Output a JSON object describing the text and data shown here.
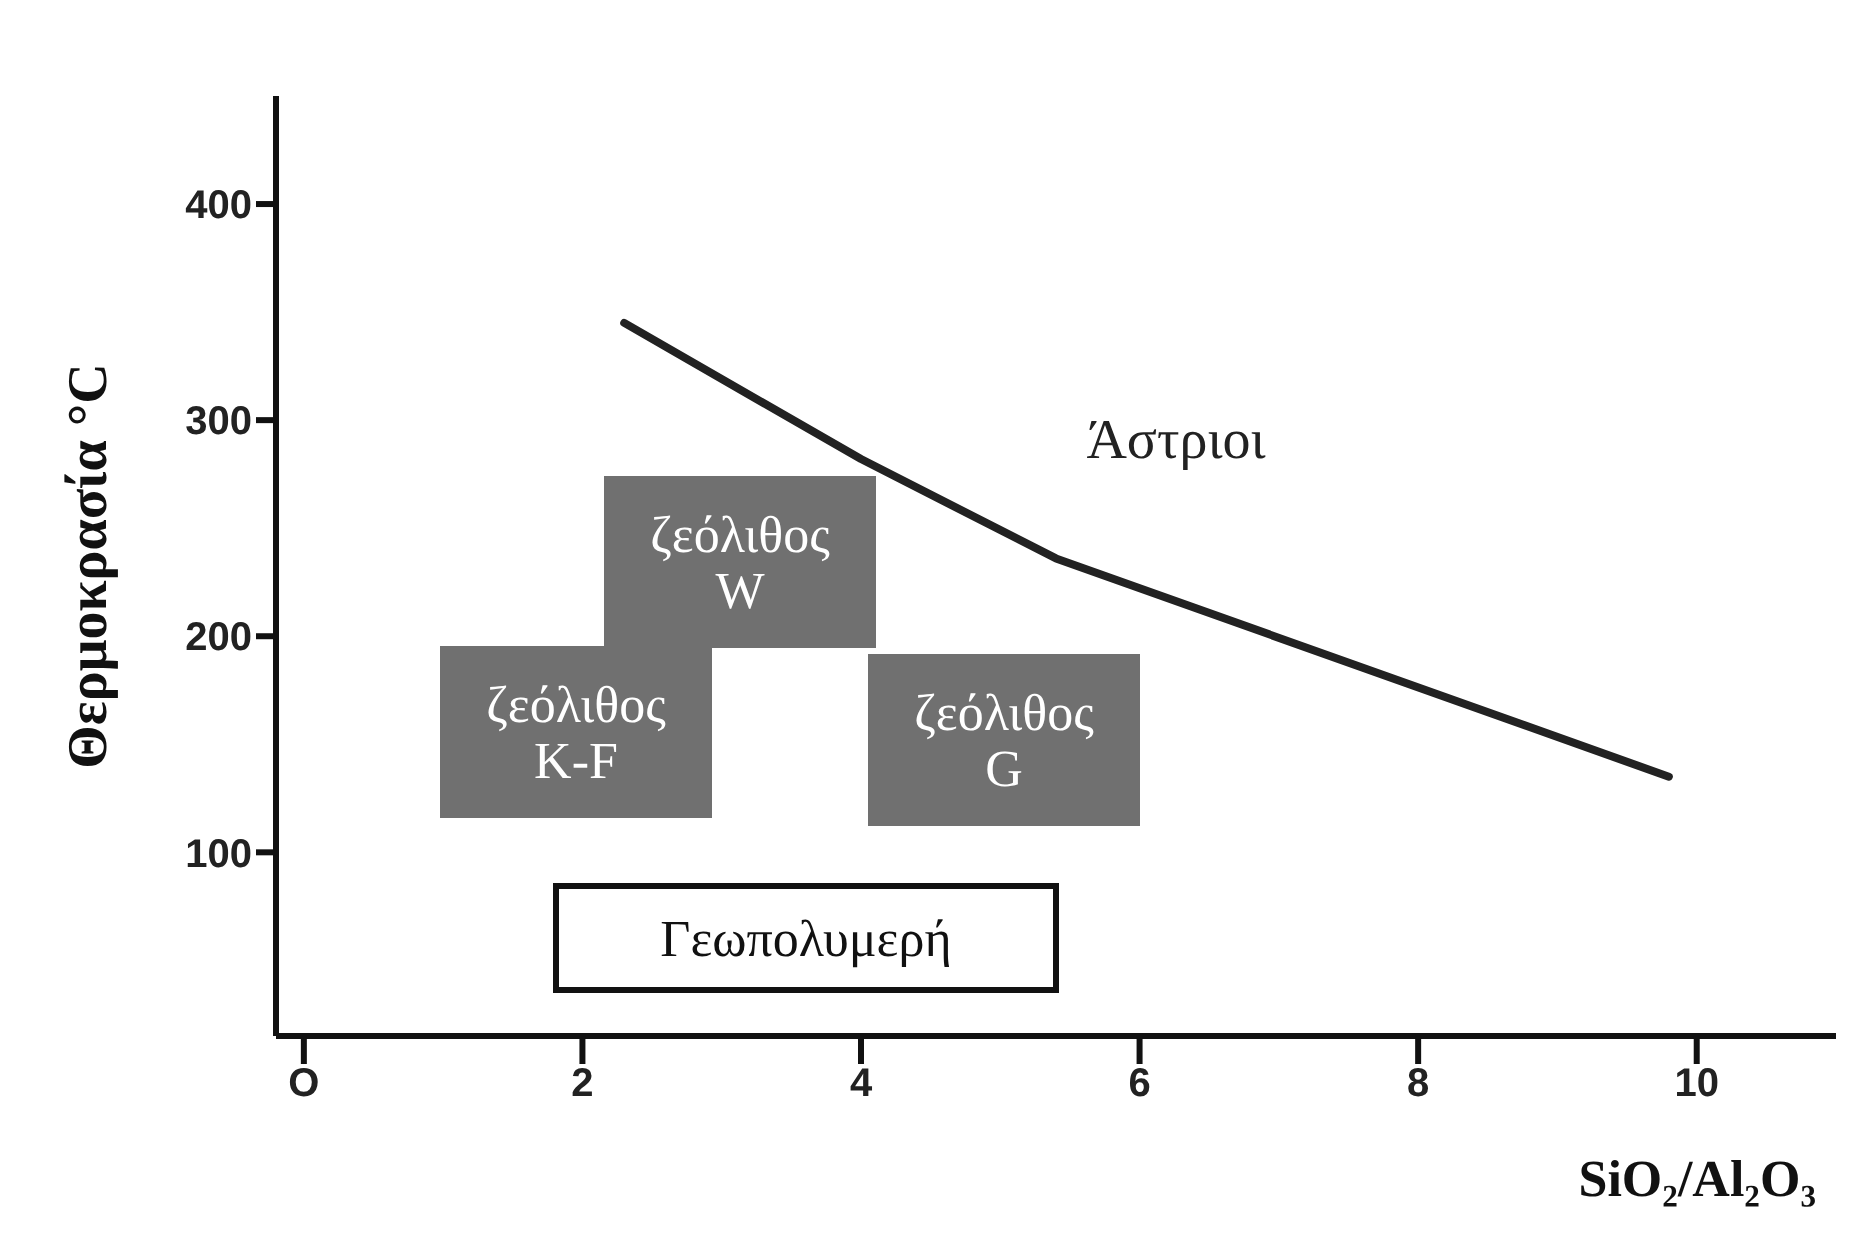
{
  "chart_data": {
    "type": "line",
    "xlabel": "SiO₂/Al₂O₃",
    "ylabel": "Θερμοκρασία °C",
    "xlim": [
      -0.2,
      11
    ],
    "xticks": [
      {
        "value": 0,
        "label": "O"
      },
      2,
      4,
      6,
      8,
      10
    ],
    "ylim": [
      15,
      450
    ],
    "yticks": [
      100,
      200,
      300,
      400
    ],
    "marker": "none",
    "line_style": "solid",
    "series": [
      {
        "name": "Άστριοι",
        "color": "#222222",
        "x": [
          2.3,
          4,
          5.4,
          9.8
        ],
        "values": [
          345,
          282,
          236,
          135
        ]
      }
    ],
    "annotations": [
      "ζεόλιθος\nW",
      "ζεόλιθος\nK-F",
      "ζεόλιθος\nG",
      "Γεωπολυμερή"
    ]
  }
}
